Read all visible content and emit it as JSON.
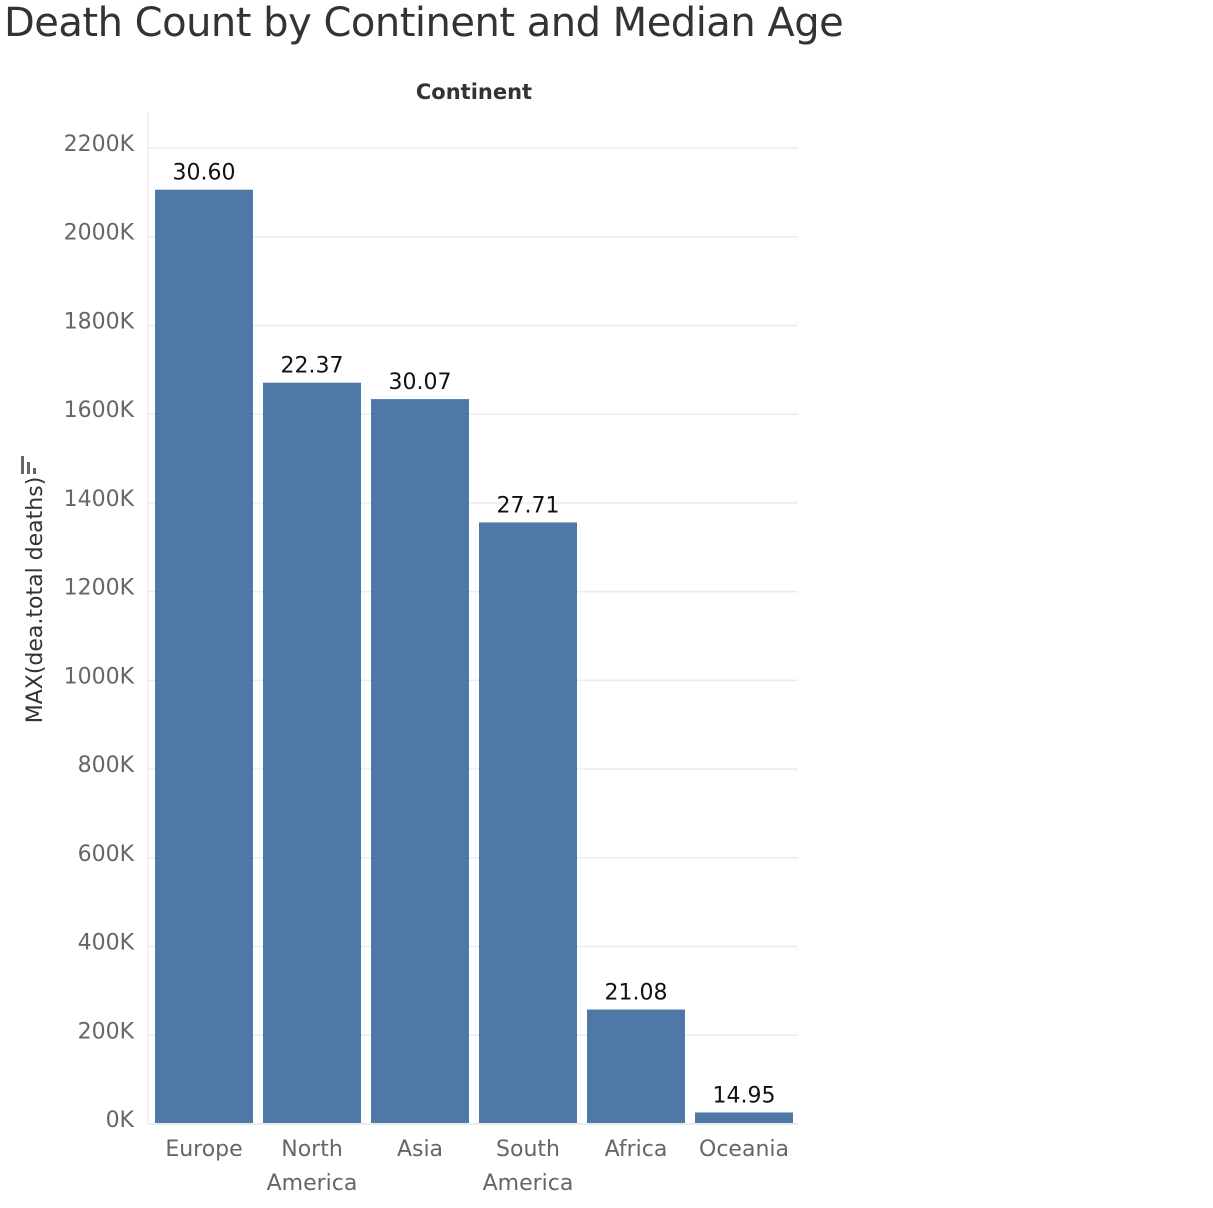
{
  "chart_data": {
    "type": "bar",
    "title": "Death Count by Continent and Median Age",
    "xlabel": "Continent",
    "ylabel": "MAX(dea.total deaths)",
    "categories": [
      [
        "Europe"
      ],
      [
        "North",
        "America"
      ],
      [
        "Asia"
      ],
      [
        "South",
        "America"
      ],
      [
        "Africa"
      ],
      [
        "Oceania"
      ]
    ],
    "values": [
      2106000,
      1671000,
      1634000,
      1356000,
      258000,
      26000
    ],
    "data_labels": [
      "30.60",
      "22.37",
      "30.07",
      "27.71",
      "21.08",
      "14.95"
    ],
    "ylim": [
      0,
      2200000
    ],
    "yticks": [
      {
        "value": 0,
        "label": "0K"
      },
      {
        "value": 200000,
        "label": "200K"
      },
      {
        "value": 400000,
        "label": "400K"
      },
      {
        "value": 600000,
        "label": "600K"
      },
      {
        "value": 800000,
        "label": "800K"
      },
      {
        "value": 1000000,
        "label": "1000K"
      },
      {
        "value": 1200000,
        "label": "1200K"
      },
      {
        "value": 1400000,
        "label": "1400K"
      },
      {
        "value": 1600000,
        "label": "1600K"
      },
      {
        "value": 1800000,
        "label": "1800K"
      },
      {
        "value": 2000000,
        "label": "2000K"
      },
      {
        "value": 2200000,
        "label": "2200K"
      }
    ],
    "bar_color": "#4e79a7",
    "grid": true,
    "legend": "none",
    "sort_icon": "sort-descending-icon"
  }
}
